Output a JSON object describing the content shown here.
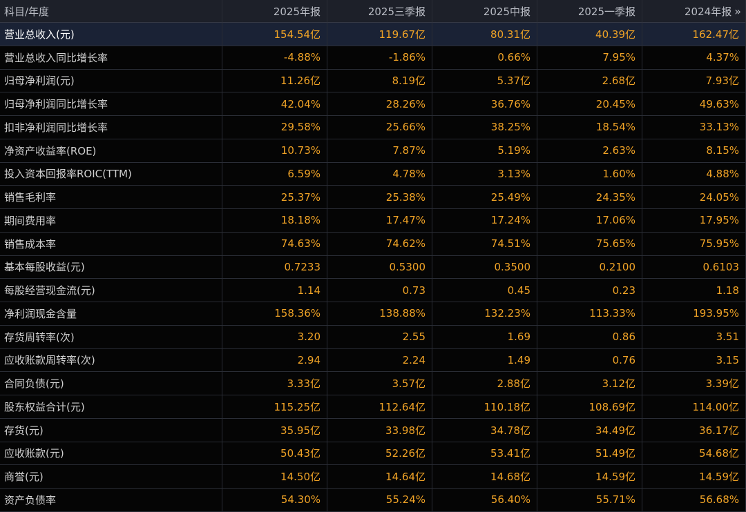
{
  "header": {
    "label": "科目/年度",
    "periods": [
      "2025年报",
      "2025三季报",
      "2025中报",
      "2025一季报",
      "2024年报"
    ],
    "more_icon": "double-chevron-right-icon"
  },
  "rows": [
    {
      "label": "营业总收入(元)",
      "values": [
        "154.54亿",
        "119.67亿",
        "80.31亿",
        "40.39亿",
        "162.47亿"
      ],
      "highlighted": true
    },
    {
      "label": "营业总收入同比增长率",
      "values": [
        "-4.88%",
        "-1.86%",
        "0.66%",
        "7.95%",
        "4.37%"
      ]
    },
    {
      "label": "归母净利润(元)",
      "values": [
        "11.26亿",
        "8.19亿",
        "5.37亿",
        "2.68亿",
        "7.93亿"
      ]
    },
    {
      "label": "归母净利润同比增长率",
      "values": [
        "42.04%",
        "28.26%",
        "36.76%",
        "20.45%",
        "49.63%"
      ]
    },
    {
      "label": "扣非净利润同比增长率",
      "values": [
        "29.58%",
        "25.66%",
        "38.25%",
        "18.54%",
        "33.13%"
      ]
    },
    {
      "label": "净资产收益率(ROE)",
      "values": [
        "10.73%",
        "7.87%",
        "5.19%",
        "2.63%",
        "8.15%"
      ]
    },
    {
      "label": "投入资本回报率ROIC(TTM)",
      "values": [
        "6.59%",
        "4.78%",
        "3.13%",
        "1.60%",
        "4.88%"
      ]
    },
    {
      "label": "销售毛利率",
      "values": [
        "25.37%",
        "25.38%",
        "25.49%",
        "24.35%",
        "24.05%"
      ]
    },
    {
      "label": "期间费用率",
      "values": [
        "18.18%",
        "17.47%",
        "17.24%",
        "17.06%",
        "17.95%"
      ]
    },
    {
      "label": "销售成本率",
      "values": [
        "74.63%",
        "74.62%",
        "74.51%",
        "75.65%",
        "75.95%"
      ]
    },
    {
      "label": "基本每股收益(元)",
      "values": [
        "0.7233",
        "0.5300",
        "0.3500",
        "0.2100",
        "0.6103"
      ]
    },
    {
      "label": "每股经营现金流(元)",
      "values": [
        "1.14",
        "0.73",
        "0.45",
        "0.23",
        "1.18"
      ]
    },
    {
      "label": "净利润现金含量",
      "values": [
        "158.36%",
        "138.88%",
        "132.23%",
        "113.33%",
        "193.95%"
      ]
    },
    {
      "label": "存货周转率(次)",
      "values": [
        "3.20",
        "2.55",
        "1.69",
        "0.86",
        "3.51"
      ]
    },
    {
      "label": "应收账款周转率(次)",
      "values": [
        "2.94",
        "2.24",
        "1.49",
        "0.76",
        "3.15"
      ]
    },
    {
      "label": "合同负债(元)",
      "values": [
        "3.33亿",
        "3.57亿",
        "2.88亿",
        "3.12亿",
        "3.39亿"
      ]
    },
    {
      "label": "股东权益合计(元)",
      "values": [
        "115.25亿",
        "112.64亿",
        "110.18亿",
        "108.69亿",
        "114.00亿"
      ]
    },
    {
      "label": "存货(元)",
      "values": [
        "35.95亿",
        "33.98亿",
        "34.78亿",
        "34.49亿",
        "36.17亿"
      ]
    },
    {
      "label": "应收账款(元)",
      "values": [
        "50.43亿",
        "52.26亿",
        "53.41亿",
        "51.49亿",
        "54.68亿"
      ]
    },
    {
      "label": "商誉(元)",
      "values": [
        "14.50亿",
        "14.64亿",
        "14.68亿",
        "14.59亿",
        "14.59亿"
      ]
    },
    {
      "label": "资产负债率",
      "values": [
        "54.30%",
        "55.24%",
        "56.40%",
        "55.71%",
        "56.68%"
      ]
    }
  ],
  "colors": {
    "value": "#f0a326",
    "label": "#cfcfcf",
    "header_bg": "#1d2029",
    "highlight_bg": "#1a2235"
  }
}
